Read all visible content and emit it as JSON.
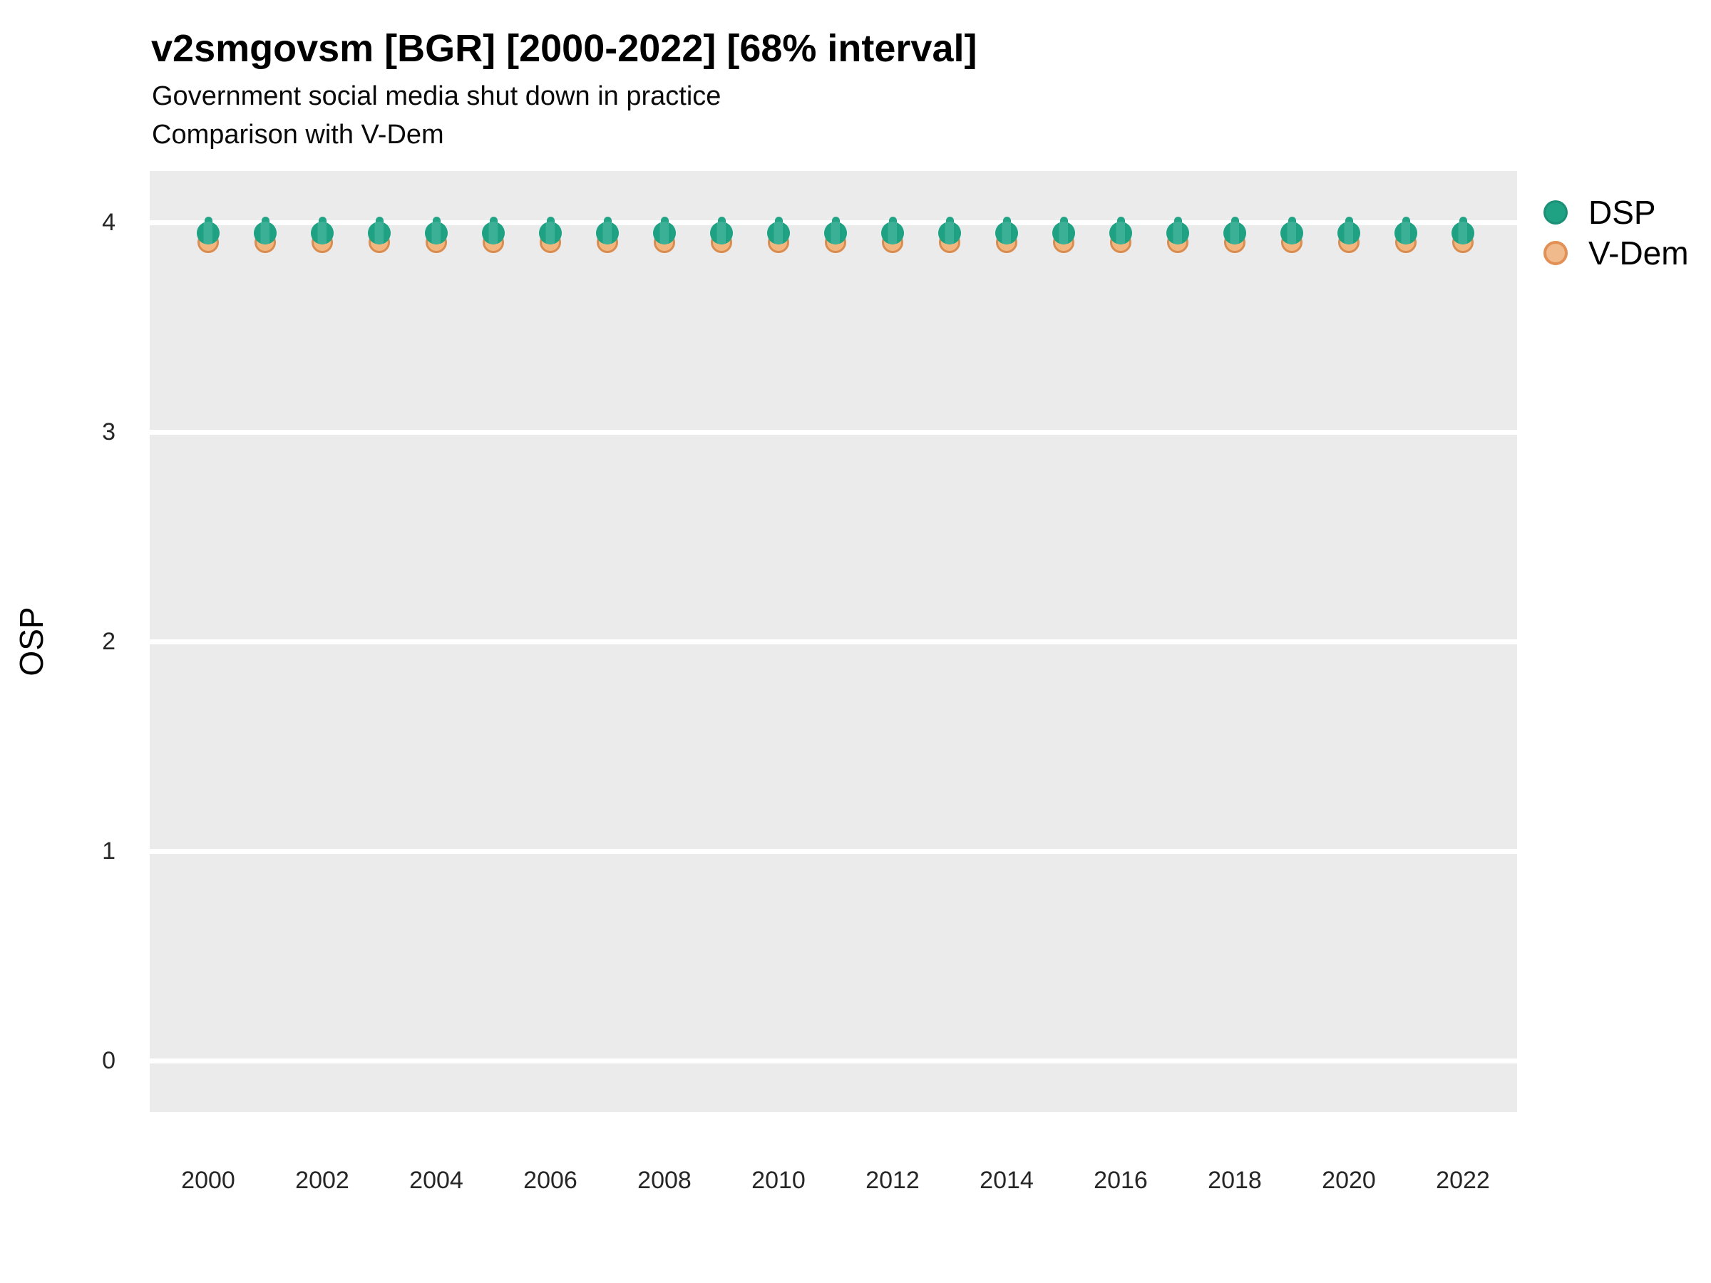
{
  "header": {
    "title": "v2smgovsm [BGR] [2000-2022] [68% interval]",
    "subtitle1": "Government social media shut down in practice",
    "subtitle2": "Comparison with V-Dem"
  },
  "chart_data": {
    "type": "scatter",
    "title": "v2smgovsm [BGR] [2000-2022] [68% interval]",
    "subtitle": [
      "Government social media shut down in practice",
      "Comparison with V-Dem"
    ],
    "xlabel": "",
    "ylabel": "OSP",
    "x": [
      2000,
      2001,
      2002,
      2003,
      2004,
      2005,
      2006,
      2007,
      2008,
      2009,
      2010,
      2011,
      2012,
      2013,
      2014,
      2015,
      2016,
      2017,
      2018,
      2019,
      2020,
      2021,
      2022
    ],
    "series": [
      {
        "name": "DSP",
        "color": "#1FA184",
        "interval_halfwidth": 0.08,
        "values": [
          3.95,
          3.95,
          3.95,
          3.95,
          3.95,
          3.95,
          3.95,
          3.95,
          3.95,
          3.95,
          3.95,
          3.95,
          3.95,
          3.95,
          3.95,
          3.95,
          3.95,
          3.95,
          3.95,
          3.95,
          3.95,
          3.95,
          3.95
        ]
      },
      {
        "name": "V-Dem",
        "color": "#F2B77F",
        "values": [
          3.93,
          3.93,
          3.93,
          3.93,
          3.93,
          3.93,
          3.93,
          3.93,
          3.93,
          3.93,
          3.93,
          3.93,
          3.93,
          3.93,
          3.93,
          3.93,
          3.93,
          3.93,
          3.93,
          3.93,
          3.93,
          3.93,
          3.93
        ]
      }
    ],
    "yticks": [
      0,
      1,
      2,
      3,
      4
    ],
    "xticks": [
      2000,
      2002,
      2004,
      2006,
      2008,
      2010,
      2012,
      2014,
      2016,
      2018,
      2020,
      2022
    ],
    "ylim": [
      -0.25,
      4.25
    ],
    "xlim": [
      1999,
      2023.4
    ],
    "grid": "horizontal-major-only",
    "legend_position": "right"
  },
  "colors": {
    "panel_bg": "#EBEBEB",
    "grid": "#FFFFFF",
    "dsp_green": "#1FA184",
    "dsp_green_light": "#3CB096",
    "dsp_interval_green": "#23A486",
    "vdem_fill": "#F2B77F",
    "vdem_stroke": "#D98C50",
    "legend_vdem_fill": "#F0BA8C",
    "legend_vdem_stroke": "#E29055"
  }
}
